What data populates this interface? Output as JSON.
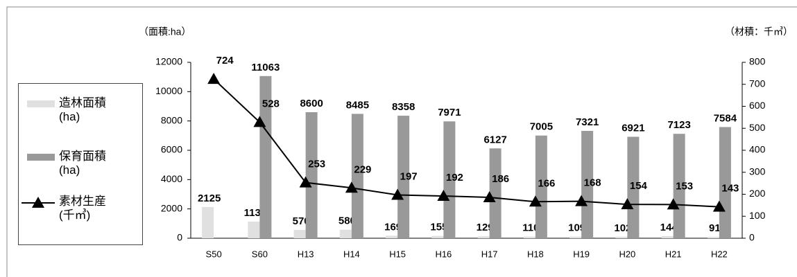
{
  "chart_data": {
    "type": "bar_line",
    "ylabel": "（面積:ha）",
    "y2label": "（材積：千㎥）",
    "categories": [
      "S50",
      "S60",
      "H13",
      "H14",
      "H15",
      "H16",
      "H17",
      "H18",
      "H19",
      "H20",
      "H21",
      "H22"
    ],
    "series": [
      {
        "name": "造林面積\n(ha)",
        "type": "bar",
        "color": "#e0e0e0",
        "values": [
          2125,
          1131,
          570,
          580,
          169,
          155,
          129,
          110,
          109,
          102,
          144,
          91
        ]
      },
      {
        "name": "保育面積\n(ha)",
        "type": "bar",
        "color": "#999999",
        "values": [
          null,
          11063,
          8600,
          8485,
          8358,
          7971,
          6127,
          7005,
          7321,
          6921,
          7123,
          7584
        ]
      },
      {
        "name": "素材生産\n(千㎥)",
        "type": "line",
        "axis": "y2",
        "color": "#000000",
        "values": [
          724,
          528,
          253,
          229,
          197,
          192,
          186,
          166,
          168,
          154,
          153,
          143
        ]
      }
    ],
    "ylim": [
      0,
      12000
    ],
    "yticks": [
      0,
      2000,
      4000,
      6000,
      8000,
      10000,
      12000
    ],
    "y2lim": [
      0,
      800
    ],
    "y2ticks": [
      0,
      100,
      200,
      300,
      400,
      500,
      600,
      700,
      800
    ]
  }
}
